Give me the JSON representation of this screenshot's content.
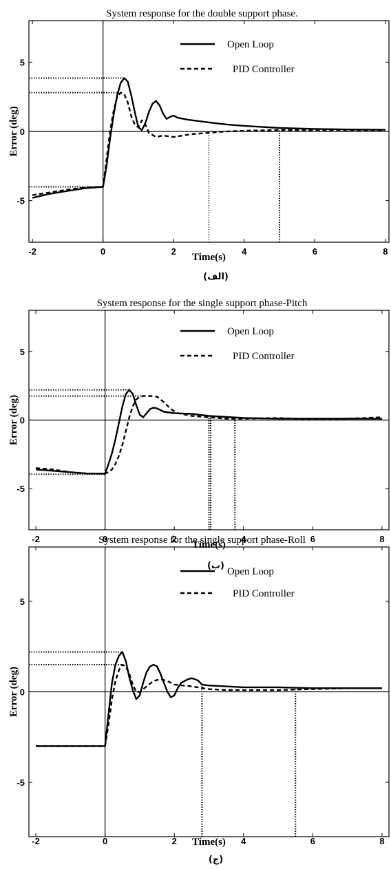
{
  "chart_data": [
    {
      "type": "line",
      "title": "System response for the double support phase.",
      "xlabel": "Time(s)",
      "ylabel": "Error (deg)",
      "caption": "(الف)",
      "xlim": [
        -2.1,
        8.1
      ],
      "ylim": [
        -8.0,
        8.0
      ],
      "xticks": [
        -2,
        0,
        2,
        4,
        6,
        8
      ],
      "yticks": [
        -5,
        0,
        5
      ],
      "legend_position": "top-right",
      "series": [
        {
          "name": "Open Loop",
          "style": "solid",
          "x": [
            -2.0,
            -1.5,
            -1.0,
            -0.5,
            0.0,
            0.1,
            0.2,
            0.3,
            0.4,
            0.5,
            0.6,
            0.7,
            0.8,
            0.9,
            1.0,
            1.1,
            1.2,
            1.3,
            1.4,
            1.5,
            1.6,
            1.7,
            1.8,
            1.9,
            2.0,
            2.1,
            2.2,
            2.4,
            2.7,
            3.0,
            3.5,
            4.0,
            5.0,
            6.0,
            7.0,
            8.0
          ],
          "y": [
            -4.8,
            -4.5,
            -4.3,
            -4.1,
            -4.0,
            -2.5,
            -0.5,
            1.2,
            2.6,
            3.5,
            3.85,
            3.6,
            2.6,
            1.4,
            0.3,
            0.1,
            0.6,
            1.4,
            2.0,
            2.2,
            1.9,
            1.3,
            0.9,
            1.05,
            1.15,
            1.0,
            0.95,
            0.85,
            0.75,
            0.65,
            0.5,
            0.4,
            0.25,
            0.18,
            0.14,
            0.12
          ]
        },
        {
          "name": "PID Controller",
          "style": "dashed",
          "x": [
            -2.0,
            -1.5,
            -1.0,
            -0.5,
            0.0,
            0.1,
            0.2,
            0.3,
            0.4,
            0.5,
            0.6,
            0.7,
            0.8,
            0.9,
            1.0,
            1.1,
            1.2,
            1.3,
            1.5,
            1.7,
            2.0,
            2.5,
            3.0,
            3.5,
            4.0,
            5.0,
            6.0,
            7.0,
            8.0
          ],
          "y": [
            -4.6,
            -4.4,
            -4.2,
            -4.05,
            -4.0,
            -2.0,
            0.0,
            1.5,
            2.5,
            2.8,
            2.7,
            2.1,
            1.1,
            0.5,
            0.3,
            0.8,
            0.5,
            -0.1,
            -0.4,
            -0.3,
            -0.4,
            -0.2,
            -0.1,
            0.0,
            0.05,
            0.1,
            0.1,
            0.1,
            0.1
          ]
        }
      ],
      "reference_lines": {
        "horizontal": [
          {
            "y": 3.85,
            "x_from": -2.1,
            "x_to": 0.6,
            "style": "dotted-thick"
          },
          {
            "y": 2.8,
            "x_from": -2.1,
            "x_to": 0.5,
            "style": "dotted-thick"
          },
          {
            "y": -4.0,
            "x_from": -2.1,
            "x_to": 0.0,
            "style": "dotted-thick"
          }
        ],
        "vertical": [
          {
            "x": 3.0,
            "y_from": -8.0,
            "y_to": -0.1,
            "style": "dotted-thin"
          },
          {
            "x": 5.0,
            "y_from": -8.0,
            "y_to": 0.1,
            "style": "dotted-thick"
          }
        ]
      }
    },
    {
      "type": "line",
      "title": "System response for the single support phase-Pitch",
      "xlabel": "Time(s)",
      "ylabel": "Error (deg)",
      "caption": "(ب)",
      "xlim": [
        -2.2,
        8.2
      ],
      "ylim": [
        -8.0,
        8.0
      ],
      "xticks": [
        -2,
        0,
        2,
        4,
        6,
        8
      ],
      "yticks": [
        -5,
        0,
        5
      ],
      "legend_position": "top-right",
      "series": [
        {
          "name": "Open Loop",
          "style": "solid",
          "x": [
            -2.0,
            -1.5,
            -1.0,
            -0.5,
            0.0,
            0.1,
            0.2,
            0.3,
            0.4,
            0.5,
            0.6,
            0.7,
            0.8,
            0.9,
            1.0,
            1.1,
            1.2,
            1.3,
            1.4,
            1.5,
            1.7,
            2.0,
            2.5,
            3.0,
            4.0,
            5.0,
            6.0,
            7.0,
            8.0
          ],
          "y": [
            -3.6,
            -3.7,
            -3.8,
            -3.9,
            -3.9,
            -3.2,
            -2.4,
            -1.4,
            -0.2,
            1.0,
            1.9,
            2.2,
            1.9,
            1.1,
            0.4,
            0.2,
            0.5,
            0.8,
            0.9,
            0.85,
            0.6,
            0.5,
            0.45,
            0.3,
            0.15,
            0.1,
            0.1,
            0.1,
            0.1
          ]
        },
        {
          "name": "PID Controller",
          "style": "dashed",
          "x": [
            -2.0,
            -1.5,
            -1.0,
            -0.5,
            0.0,
            0.1,
            0.2,
            0.3,
            0.4,
            0.5,
            0.6,
            0.7,
            0.8,
            0.9,
            1.0,
            1.1,
            1.3,
            1.5,
            1.7,
            1.9,
            2.1,
            2.5,
            3.0,
            3.5,
            4.0,
            5.0,
            6.0,
            7.0,
            8.0
          ],
          "y": [
            -3.5,
            -3.6,
            -3.8,
            -3.9,
            -3.9,
            -3.8,
            -3.6,
            -3.2,
            -2.6,
            -1.8,
            -0.8,
            0.2,
            1.0,
            1.5,
            1.7,
            1.75,
            1.75,
            1.7,
            1.3,
            0.8,
            0.5,
            0.3,
            0.2,
            0.1,
            0.1,
            0.15,
            0.05,
            0.1,
            0.2
          ]
        }
      ],
      "reference_lines": {
        "horizontal": [
          {
            "y": 2.2,
            "x_from": -2.2,
            "x_to": 0.7,
            "style": "dotted-thick"
          },
          {
            "y": 1.75,
            "x_from": -2.2,
            "x_to": 1.2,
            "style": "dotted-thick"
          },
          {
            "y": -3.95,
            "x_from": -2.2,
            "x_to": 0.0,
            "style": "dotted-thick"
          }
        ],
        "vertical": [
          {
            "x": 3.0,
            "y_from": -8.0,
            "y_to": 0.3,
            "style": "dotted-thick"
          },
          {
            "x": 3.05,
            "y_from": -8.0,
            "y_to": 0.3,
            "style": "dotted-thick"
          },
          {
            "x": 3.75,
            "y_from": -8.0,
            "y_to": 0.1,
            "style": "dotted-thick"
          }
        ]
      }
    },
    {
      "type": "line",
      "title": "System response for the single support phase-Roll",
      "xlabel": "Time(s)",
      "ylabel": "Error (deg)",
      "caption": "(ج)",
      "xlim": [
        -2.2,
        8.2
      ],
      "ylim": [
        -8.0,
        8.0
      ],
      "xticks": [
        -2,
        0,
        2,
        4,
        6,
        8
      ],
      "yticks": [
        -5,
        0,
        5
      ],
      "legend_position": "top-right",
      "series": [
        {
          "name": "Open Loop",
          "style": "solid",
          "x": [
            -2.0,
            -1.5,
            -1.0,
            -0.5,
            0.0,
            0.1,
            0.2,
            0.3,
            0.4,
            0.5,
            0.6,
            0.7,
            0.8,
            0.9,
            1.0,
            1.1,
            1.2,
            1.3,
            1.4,
            1.5,
            1.6,
            1.7,
            1.8,
            1.9,
            2.0,
            2.1,
            2.2,
            2.4,
            2.5,
            2.6,
            2.7,
            2.8,
            3.0,
            3.5,
            4.0,
            5.0,
            6.0,
            7.0,
            8.0
          ],
          "y": [
            -3.0,
            -3.0,
            -3.0,
            -3.0,
            -3.0,
            -1.2,
            0.5,
            1.5,
            2.0,
            2.2,
            1.7,
            0.8,
            0.1,
            -0.4,
            -0.2,
            0.5,
            1.1,
            1.4,
            1.5,
            1.4,
            1.0,
            0.5,
            0.0,
            -0.3,
            -0.2,
            0.2,
            0.5,
            0.7,
            0.75,
            0.7,
            0.6,
            0.4,
            0.35,
            0.3,
            0.25,
            0.25,
            0.2,
            0.2,
            0.2
          ]
        },
        {
          "name": "PID Controller",
          "style": "dashed",
          "x": [
            -2.0,
            -1.5,
            -1.0,
            -0.5,
            0.0,
            0.1,
            0.2,
            0.3,
            0.4,
            0.5,
            0.6,
            0.7,
            0.8,
            0.9,
            1.0,
            1.2,
            1.4,
            1.6,
            1.8,
            2.0,
            2.5,
            3.0,
            3.5,
            4.0,
            5.0,
            6.0,
            7.0,
            8.0
          ],
          "y": [
            -3.0,
            -3.0,
            -3.0,
            -3.0,
            -3.0,
            -1.8,
            -0.4,
            0.6,
            1.2,
            1.5,
            1.4,
            1.0,
            0.4,
            0.0,
            0.0,
            0.3,
            0.6,
            0.7,
            0.6,
            0.4,
            0.3,
            0.15,
            0.1,
            0.1,
            0.1,
            0.15,
            0.2,
            0.2
          ]
        }
      ],
      "reference_lines": {
        "horizontal": [
          {
            "y": 2.2,
            "x_from": -2.2,
            "x_to": 0.5,
            "style": "dotted-thick"
          },
          {
            "y": 1.5,
            "x_from": -2.2,
            "x_to": 0.5,
            "style": "dotted-thick"
          }
        ],
        "vertical": [
          {
            "x": 2.8,
            "y_from": -8.0,
            "y_to": 0.35,
            "style": "dotted-thick"
          },
          {
            "x": 5.5,
            "y_from": -8.0,
            "y_to": 0.15,
            "style": "dotted-thick"
          }
        ]
      }
    }
  ]
}
